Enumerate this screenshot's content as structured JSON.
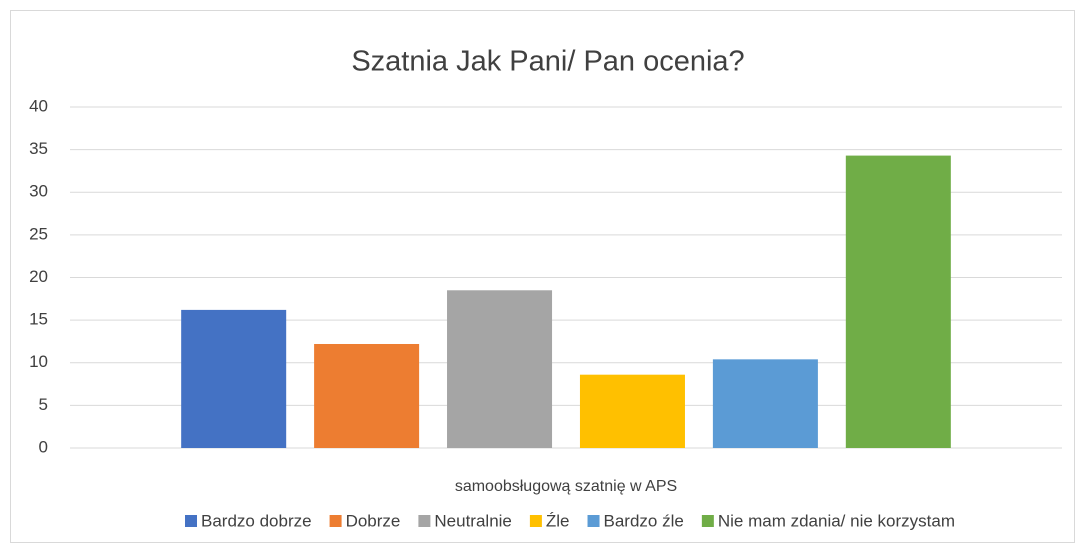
{
  "chart_data": {
    "type": "bar",
    "title": "Szatnia Jak Pani/ Pan ocenia?",
    "categories": [
      "samoobsługową szatnię w APS"
    ],
    "series": [
      {
        "name": "Bardzo dobrze",
        "color": "#4472c4",
        "values": [
          16.2
        ]
      },
      {
        "name": "Dobrze",
        "color": "#ed7d31",
        "values": [
          12.2
        ]
      },
      {
        "name": "Neutralnie",
        "color": "#a5a5a5",
        "values": [
          18.5
        ]
      },
      {
        "name": "Źle",
        "color": "#ffc000",
        "values": [
          8.6
        ]
      },
      {
        "name": "Bardzo źle",
        "color": "#5b9bd5",
        "values": [
          10.4
        ]
      },
      {
        "name": "Nie mam zdania/ nie korzystam",
        "color": "#70ad47",
        "values": [
          34.3
        ]
      }
    ],
    "ylim": [
      0,
      40
    ],
    "yticks": [
      0,
      5,
      10,
      15,
      20,
      25,
      30,
      35,
      40
    ],
    "grid": true,
    "legend": "bottom"
  }
}
